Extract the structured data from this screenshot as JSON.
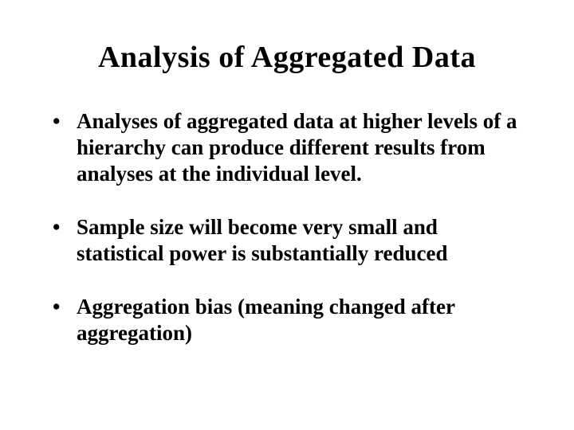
{
  "slide": {
    "title": "Analysis of Aggregated Data",
    "bullets": [
      "Analyses of aggregated data at higher levels of a hierarchy can produce different results from analyses at the individual level.",
      "Sample size will become very small and statistical power is substantially reduced",
      "Aggregation bias (meaning changed after aggregation)"
    ]
  }
}
